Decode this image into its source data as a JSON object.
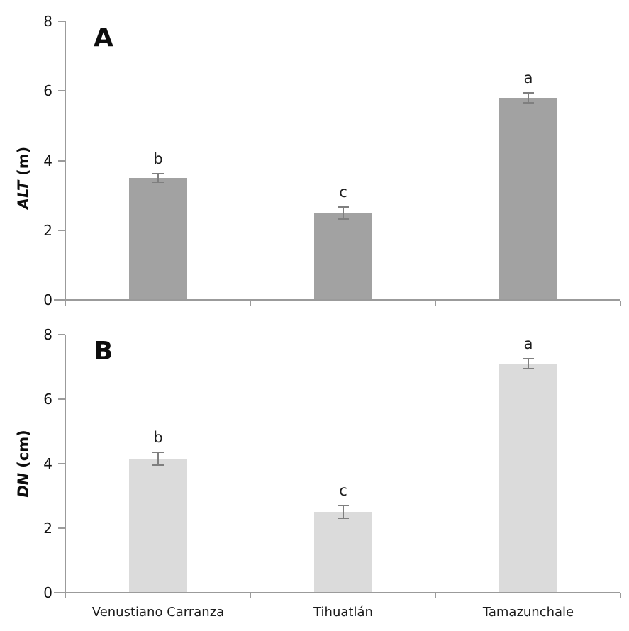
{
  "figure": {
    "background": "#ffffff",
    "text_color": "#111111"
  },
  "chart_data": [
    {
      "type": "bar",
      "panel_label": "A",
      "title": "",
      "xlabel": "",
      "ylabel": "ALT (m)",
      "ylabel_var": "ALT",
      "ylabel_unit": "(m)",
      "categories": [
        "Venustiano Carranza",
        "Tihuatlán",
        "Tamazunchale"
      ],
      "values": [
        3.5,
        2.5,
        5.8
      ],
      "errors": [
        0.13,
        0.17,
        0.14
      ],
      "sig_letters": [
        "b",
        "c",
        "a"
      ],
      "ylim": [
        0,
        8
      ],
      "yticks": [
        0,
        2,
        4,
        6,
        8
      ],
      "show_x_tick_labels": false,
      "grid": false,
      "legend": false,
      "bar_color": "#a2a2a2",
      "error_color": "#7f7f7f",
      "axis_color": "#9b9b9b"
    },
    {
      "type": "bar",
      "panel_label": "B",
      "title": "",
      "xlabel": "",
      "ylabel": "DN (cm)",
      "ylabel_var": "DN",
      "ylabel_unit": "(cm)",
      "categories": [
        "Venustiano Carranza",
        "Tihuatlán",
        "Tamazunchale"
      ],
      "values": [
        4.15,
        2.5,
        7.1
      ],
      "errors": [
        0.2,
        0.2,
        0.16
      ],
      "sig_letters": [
        "b",
        "c",
        "a"
      ],
      "ylim": [
        0,
        8
      ],
      "yticks": [
        0,
        2,
        4,
        6,
        8
      ],
      "show_x_tick_labels": true,
      "grid": false,
      "legend": false,
      "bar_color": "#dbdbdb",
      "error_color": "#7f7f7f",
      "axis_color": "#9b9b9b"
    }
  ]
}
